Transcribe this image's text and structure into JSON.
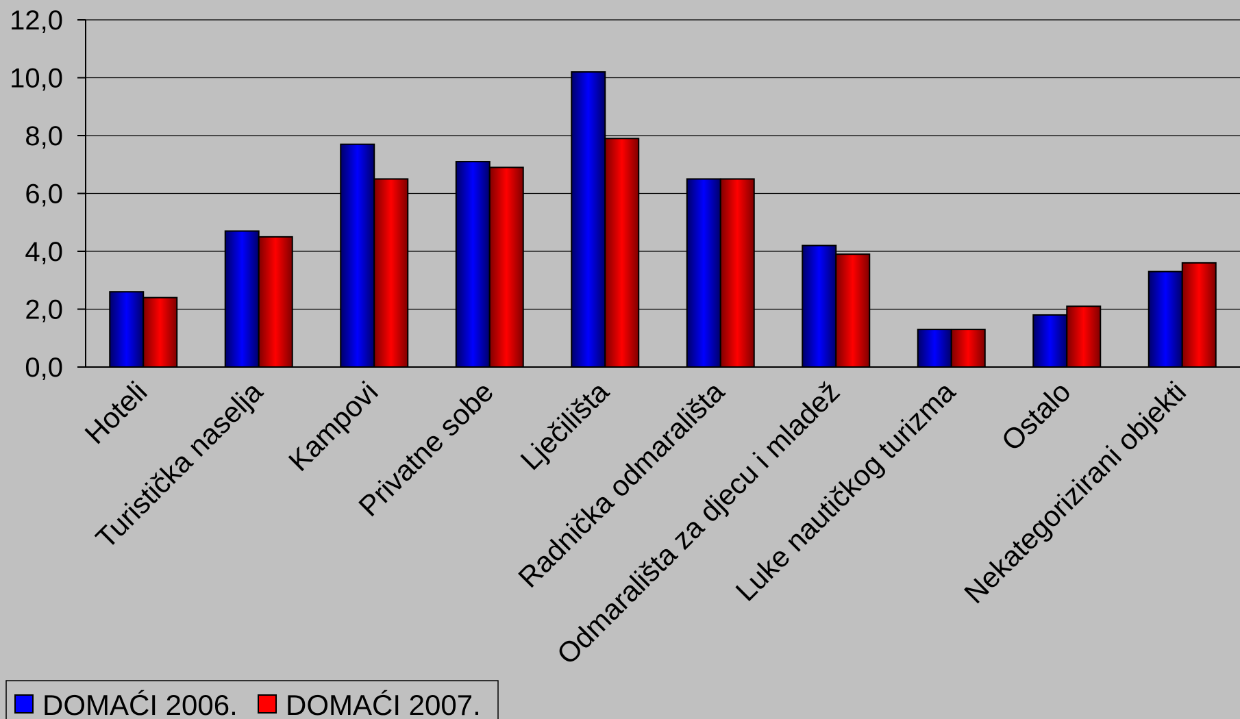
{
  "chart_data": {
    "type": "bar",
    "categories": [
      "Hoteli",
      "Turistička naselja",
      "Kampovi",
      "Privatne sobe",
      "Lječilišta",
      "Radnička odmarališta",
      "Odmarališta za djecu i mladež",
      "Luke nautičkog turizma",
      "Ostalo",
      "Nekategorizirani objekti"
    ],
    "series": [
      {
        "name": "DOMAĆI 2006.",
        "color": "#0000ff",
        "values": [
          2.6,
          4.7,
          7.7,
          7.1,
          10.2,
          6.5,
          4.2,
          1.3,
          1.8,
          3.3
        ]
      },
      {
        "name": "DOMAĆI 2007.",
        "color": "#ff0000",
        "values": [
          2.4,
          4.5,
          6.5,
          6.9,
          7.9,
          6.5,
          3.9,
          1.3,
          2.1,
          3.6
        ]
      }
    ],
    "yticks": [
      "0,0",
      "2,0",
      "4,0",
      "6,0",
      "8,0",
      "10,0",
      "12,0"
    ],
    "ylim": [
      0,
      12
    ],
    "grid": true,
    "legend_position": "bottom-left",
    "title": "",
    "xlabel": "",
    "ylabel": ""
  }
}
